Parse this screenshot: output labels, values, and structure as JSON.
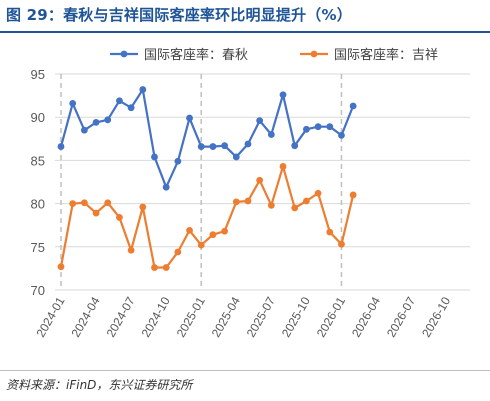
{
  "figure": {
    "title": "图 29：春秋与吉祥国际客座率环比明显提升（%）",
    "source": "资料来源：iFinD，东兴证券研究所"
  },
  "colors": {
    "title": "#1f5597",
    "series_blue": "#4472c4",
    "series_orange": "#ed7d31",
    "grid": "#d9d9d9",
    "axis_text": "#595959",
    "dashed_line": "#bfbfbf"
  },
  "chart_data": {
    "type": "line",
    "ylim": [
      70,
      95
    ],
    "yticks": [
      70,
      75,
      80,
      85,
      90,
      95
    ],
    "grid": true,
    "legend_position": "top",
    "x_tick_labels": [
      "2024-01",
      "2024-04",
      "2024-07",
      "2024-10",
      "2025-01",
      "2025-04",
      "2025-07",
      "2025-10",
      "2026-01",
      "2026-04",
      "2026-07",
      "2026-10"
    ],
    "x_range": [
      "2024-01",
      "2026-12"
    ],
    "dashed_vertical_at": [
      "2024-01",
      "2025-01",
      "2026-01"
    ],
    "series": [
      {
        "name": "国际客座率：春秋",
        "color": "#4472c4",
        "x": [
          "2024-01",
          "2024-02",
          "2024-03",
          "2024-04",
          "2024-05",
          "2024-06",
          "2024-07",
          "2024-08",
          "2024-09",
          "2024-10",
          "2024-11",
          "2024-12",
          "2025-01",
          "2025-02",
          "2025-03",
          "2025-04",
          "2025-05",
          "2025-06",
          "2025-07",
          "2025-08",
          "2025-09",
          "2025-10",
          "2025-11",
          "2025-12",
          "2026-01",
          "2026-02"
        ],
        "values": [
          86.6,
          91.6,
          88.5,
          89.4,
          89.7,
          91.9,
          91.1,
          93.2,
          85.4,
          81.9,
          84.9,
          89.9,
          86.6,
          86.6,
          86.7,
          85.4,
          86.9,
          89.6,
          88.0,
          92.6,
          86.7,
          88.6,
          88.9,
          88.9,
          87.9,
          91.3
        ]
      },
      {
        "name": "国际客座率：吉祥",
        "color": "#ed7d31",
        "x": [
          "2024-01",
          "2024-02",
          "2024-03",
          "2024-04",
          "2024-05",
          "2024-06",
          "2024-07",
          "2024-08",
          "2024-09",
          "2024-10",
          "2024-11",
          "2024-12",
          "2025-01",
          "2025-02",
          "2025-03",
          "2025-04",
          "2025-05",
          "2025-06",
          "2025-07",
          "2025-08",
          "2025-09",
          "2025-10",
          "2025-11",
          "2025-12",
          "2026-01",
          "2026-02"
        ],
        "values": [
          72.7,
          80.0,
          80.1,
          78.9,
          80.1,
          78.4,
          74.6,
          79.6,
          72.6,
          72.6,
          74.4,
          76.9,
          75.2,
          76.4,
          76.8,
          80.2,
          80.3,
          82.7,
          79.8,
          84.3,
          79.5,
          80.3,
          81.2,
          76.7,
          75.3,
          81.0
        ]
      }
    ]
  }
}
